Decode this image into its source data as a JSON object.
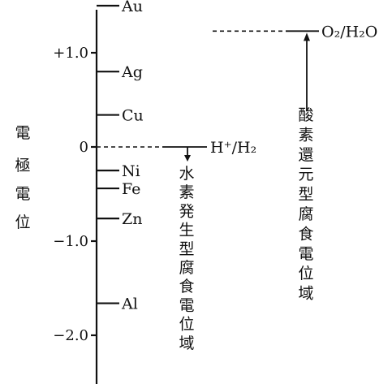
{
  "axis": {
    "title_chars": [
      "電",
      "極",
      "電",
      "位"
    ],
    "ticks": [
      {
        "label": "+1.0",
        "value": 1.0
      },
      {
        "label": "0",
        "value": 0.0
      },
      {
        "label": "−1.0",
        "value": -1.0
      },
      {
        "label": "−2.0",
        "value": -2.0
      }
    ]
  },
  "metals": [
    {
      "label": "Au",
      "value": 1.5
    },
    {
      "label": "Ag",
      "value": 0.8
    },
    {
      "label": "Cu",
      "value": 0.34
    },
    {
      "label": "Ni",
      "value": -0.25
    },
    {
      "label": "Fe",
      "value": -0.44
    },
    {
      "label": "Zn",
      "value": -0.76
    },
    {
      "label": "Al",
      "value": -1.66
    }
  ],
  "reference_lines": [
    {
      "label": "H⁺/H₂",
      "value": 0.0,
      "region_text": "水素発生型腐食電位域"
    },
    {
      "label": "O₂/H₂O",
      "value": 1.23,
      "region_text": "酸素還元型腐食電位域"
    }
  ]
}
